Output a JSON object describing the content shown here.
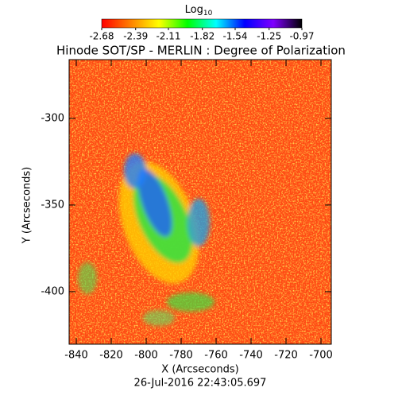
{
  "chart_data": {
    "type": "heatmap",
    "title": "Hinode SOT/SP - MERLIN : Degree of Polarization",
    "subtitle": "26-Jul-2016 22:43:05.697",
    "x_label": "X (Arcseconds)",
    "y_label": "Y (Arcseconds)",
    "xlim": [
      -844.1,
      -694.1
    ],
    "ylim": [
      -430.3,
      -266.1
    ],
    "xticks": [
      -840,
      -820,
      -800,
      -780,
      -760,
      -740,
      -720,
      -700
    ],
    "yticks": [
      -300,
      -350,
      -400
    ],
    "colorbar_label": "Log",
    "colorbar_label_sub": "10",
    "clim": [
      -2.68,
      -0.97
    ],
    "colorbar_ticks": [
      -2.68,
      -2.39,
      -2.11,
      -1.82,
      -1.54,
      -1.25,
      -0.97
    ],
    "colormap": [
      "#ff0000",
      "#ff7f00",
      "#ffff00",
      "#00ff00",
      "#00ffff",
      "#0000ff",
      "#7f00ff",
      "#000000"
    ]
  }
}
